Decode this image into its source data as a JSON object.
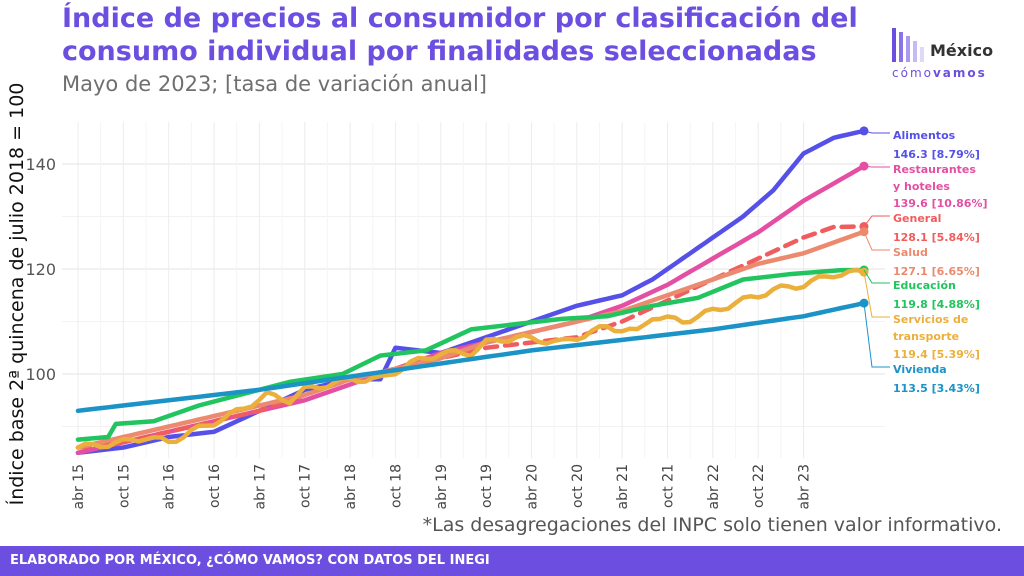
{
  "header": {
    "title": "Índice de precios al consumidor por clasificación del consumo individual por finalidades seleccionadas",
    "subtitle": "Mayo de 2023; [tasa de variación anual]"
  },
  "logo": {
    "name": "México",
    "tag_part1": "cómo",
    "tag_part2": "vamos"
  },
  "note": "*Las desagregaciones del INPC solo tienen valor informativo.",
  "footer": "ELABORADO POR MÉXICO, ¿CÓMO VAMOS? CON DATOS DEL INEGI",
  "colors": {
    "title": "#6c4fe0",
    "footer_bg": "#6c4fe0",
    "Alimentos": "#5550e8",
    "Restaurantes y hoteles": "#e44fa3",
    "General": "#f05d5e",
    "Salud": "#ec8a6f",
    "Educación": "#21c45f",
    "Servicios de transporte": "#ebb03c",
    "Vivienda": "#1b93c6"
  },
  "chart_data": {
    "type": "line",
    "ylabel": "Índice base 2ª quincena de julio 2018 = 100",
    "xlabel": "",
    "ylim": [
      84,
      148
    ],
    "yticks": [
      100,
      120,
      140
    ],
    "x_ticks": [
      "abr 15",
      "oct 15",
      "abr 16",
      "oct 16",
      "abr 17",
      "oct 17",
      "abr 18",
      "oct 18",
      "abr 19",
      "oct 19",
      "abr 20",
      "oct 20",
      "abr 21",
      "oct 21",
      "abr 22",
      "oct 22",
      "abr 23"
    ],
    "grid": true,
    "x_start": "abr 15",
    "x_end": "may 23",
    "series": [
      {
        "name": "Alimentos",
        "label_lines": [
          "Alimentos"
        ],
        "value_label": "146.3 [8.79%]",
        "last": 146.3,
        "style": "solid",
        "knots": [
          [
            0,
            85
          ],
          [
            6,
            86
          ],
          [
            12,
            88
          ],
          [
            18,
            89
          ],
          [
            24,
            93
          ],
          [
            30,
            97
          ],
          [
            36,
            99
          ],
          [
            40,
            99
          ],
          [
            42,
            105
          ],
          [
            48,
            104
          ],
          [
            54,
            107
          ],
          [
            60,
            110
          ],
          [
            66,
            113
          ],
          [
            72,
            115
          ],
          [
            76,
            118
          ],
          [
            78,
            120
          ],
          [
            80,
            122
          ],
          [
            84,
            126
          ],
          [
            88,
            130
          ],
          [
            92,
            135
          ],
          [
            96,
            142
          ],
          [
            100,
            145
          ],
          [
            104,
            146.3
          ]
        ]
      },
      {
        "name": "Restaurantes y hoteles",
        "label_lines": [
          "Restaurantes",
          "y hoteles"
        ],
        "value_label": "139.6 [10.86%]",
        "last": 139.6,
        "style": "solid",
        "knots": [
          [
            0,
            85
          ],
          [
            6,
            87
          ],
          [
            12,
            89
          ],
          [
            18,
            91
          ],
          [
            24,
            93
          ],
          [
            30,
            95
          ],
          [
            36,
            98
          ],
          [
            42,
            101
          ],
          [
            48,
            104
          ],
          [
            54,
            106
          ],
          [
            60,
            108
          ],
          [
            66,
            110
          ],
          [
            72,
            113
          ],
          [
            78,
            117
          ],
          [
            84,
            122
          ],
          [
            90,
            127
          ],
          [
            96,
            133
          ],
          [
            104,
            139.6
          ]
        ]
      },
      {
        "name": "General",
        "label_lines": [
          "General"
        ],
        "value_label": "128.1 [5.84%]",
        "last": 128.1,
        "style": "dashed",
        "knots": [
          [
            0,
            86
          ],
          [
            6,
            87
          ],
          [
            12,
            89
          ],
          [
            18,
            91
          ],
          [
            24,
            93
          ],
          [
            30,
            96
          ],
          [
            36,
            99
          ],
          [
            42,
            101
          ],
          [
            48,
            103
          ],
          [
            54,
            105
          ],
          [
            60,
            106
          ],
          [
            66,
            107
          ],
          [
            72,
            110
          ],
          [
            78,
            114
          ],
          [
            84,
            118
          ],
          [
            90,
            122
          ],
          [
            96,
            126
          ],
          [
            100,
            128
          ],
          [
            104,
            128.1
          ]
        ]
      },
      {
        "name": "Salud",
        "label_lines": [
          "Salud"
        ],
        "value_label": "127.1 [6.65%]",
        "last": 127.1,
        "style": "solid",
        "knots": [
          [
            0,
            86
          ],
          [
            6,
            88
          ],
          [
            12,
            90
          ],
          [
            18,
            92
          ],
          [
            24,
            94
          ],
          [
            30,
            96
          ],
          [
            36,
            99
          ],
          [
            42,
            101
          ],
          [
            48,
            103
          ],
          [
            54,
            106
          ],
          [
            60,
            108
          ],
          [
            66,
            110
          ],
          [
            72,
            112
          ],
          [
            78,
            115
          ],
          [
            84,
            118
          ],
          [
            90,
            121
          ],
          [
            96,
            123
          ],
          [
            104,
            127.1
          ]
        ]
      },
      {
        "name": "Educación",
        "label_lines": [
          "Educación"
        ],
        "value_label": "119.8 [4.88%]",
        "last": 119.8,
        "style": "step",
        "knots": [
          [
            0,
            87.5
          ],
          [
            4,
            88
          ],
          [
            5,
            90.5
          ],
          [
            10,
            91
          ],
          [
            16,
            94
          ],
          [
            20,
            95.5
          ],
          [
            28,
            98.5
          ],
          [
            35,
            100
          ],
          [
            40,
            103.5
          ],
          [
            46,
            104.5
          ],
          [
            52,
            108.5
          ],
          [
            58,
            109.5
          ],
          [
            64,
            110.5
          ],
          [
            70,
            111
          ],
          [
            76,
            113
          ],
          [
            82,
            114.5
          ],
          [
            88,
            118
          ],
          [
            94,
            119
          ],
          [
            101,
            119.8
          ],
          [
            104,
            119.8
          ]
        ]
      },
      {
        "name": "Servicios de transporte",
        "label_lines": [
          "Servicios de",
          "transporte"
        ],
        "value_label": "119.4 [5.39%]",
        "last": 119.4,
        "style": "wavy",
        "knots": [
          [
            0,
            86
          ],
          [
            6,
            87
          ],
          [
            9,
            88
          ],
          [
            12,
            87
          ],
          [
            15,
            89
          ],
          [
            20,
            92
          ],
          [
            25,
            96
          ],
          [
            28,
            95
          ],
          [
            30,
            97
          ],
          [
            36,
            99
          ],
          [
            40,
            99
          ],
          [
            44,
            102
          ],
          [
            48,
            104
          ],
          [
            52,
            104
          ],
          [
            54,
            106
          ],
          [
            58,
            107
          ],
          [
            64,
            106
          ],
          [
            66,
            107
          ],
          [
            70,
            109
          ],
          [
            74,
            108
          ],
          [
            76,
            111
          ],
          [
            80,
            110
          ],
          [
            84,
            112
          ],
          [
            88,
            114
          ],
          [
            92,
            116
          ],
          [
            96,
            117
          ],
          [
            100,
            119
          ],
          [
            104,
            119.4
          ]
        ]
      },
      {
        "name": "Vivienda",
        "label_lines": [
          "Vivienda"
        ],
        "value_label": "113.5 [3.43%]",
        "last": 113.5,
        "style": "solid",
        "knots": [
          [
            0,
            93
          ],
          [
            12,
            95
          ],
          [
            24,
            97
          ],
          [
            36,
            99.5
          ],
          [
            48,
            102
          ],
          [
            60,
            104.5
          ],
          [
            72,
            106.5
          ],
          [
            84,
            108.5
          ],
          [
            96,
            111
          ],
          [
            104,
            113.5
          ]
        ]
      }
    ]
  }
}
